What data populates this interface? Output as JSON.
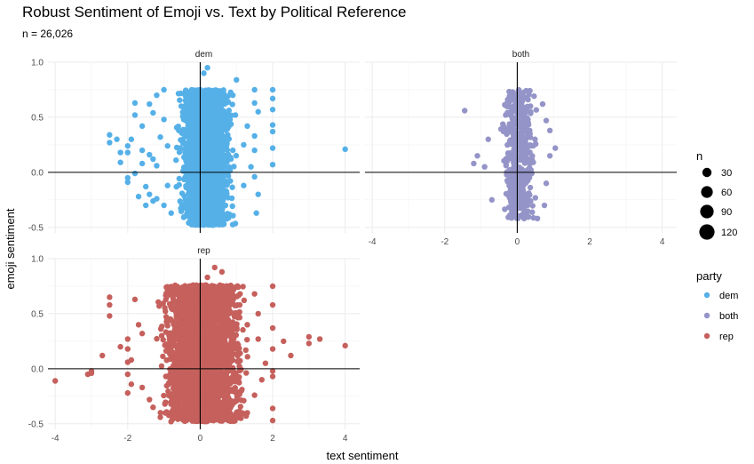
{
  "chart_data": {
    "type": "scatter",
    "title": "Robust Sentiment of Emoji vs. Text by Political Reference",
    "subtitle": "n = 26,026",
    "xlabel": "text sentiment",
    "ylabel": "emoji sentiment",
    "xlim": [
      -4.2,
      4.4
    ],
    "ylim": [
      -0.55,
      1.0
    ],
    "x_ticks": [
      -4,
      -2,
      0,
      2,
      4
    ],
    "y_ticks": [
      -0.5,
      0.0,
      0.5,
      1.0
    ],
    "x_tick_labels": [
      "-4",
      "-2",
      "0",
      "2",
      "4"
    ],
    "y_tick_labels": [
      "-0.5",
      "0.0",
      "0.5",
      "1.0"
    ],
    "grid": true,
    "reference_lines": {
      "x": 0,
      "y": 0
    },
    "facets": [
      "dem",
      "both",
      "rep"
    ],
    "legend": {
      "size": {
        "title": "n",
        "values": [
          30,
          60,
          90,
          120
        ],
        "labels": [
          "30",
          "60",
          "90",
          "120"
        ]
      },
      "color": {
        "title": "party",
        "entries": [
          {
            "key": "dem",
            "label": " dem",
            "color": "#56B0E8"
          },
          {
            "key": "both",
            "label": "both",
            "color": "#9494C8"
          },
          {
            "key": "rep",
            "label": "rep",
            "color": "#C5605C"
          }
        ]
      }
    },
    "series": [
      {
        "name": "dem",
        "color": "#56B0E8",
        "cloud": {
          "x_range": [
            -0.7,
            1.0
          ],
          "y_range": [
            -0.48,
            0.75
          ],
          "count": 2200
        },
        "points": [
          [
            4.0,
            0.21
          ],
          [
            2.0,
            0.75
          ],
          [
            2.0,
            0.67
          ],
          [
            2.0,
            0.57
          ],
          [
            2.0,
            0.43
          ],
          [
            2.0,
            0.37
          ],
          [
            2.0,
            0.22
          ],
          [
            2.0,
            0.07
          ],
          [
            1.5,
            0.75
          ],
          [
            1.5,
            0.63
          ],
          [
            1.5,
            0.33
          ],
          [
            1.5,
            0.2
          ],
          [
            1.5,
            -0.04
          ],
          [
            1.6,
            0.55
          ],
          [
            1.3,
            0.42
          ],
          [
            1.2,
            0.25
          ],
          [
            1.4,
            0.05
          ],
          [
            1.6,
            -0.2
          ],
          [
            1.55,
            -0.37
          ],
          [
            1.2,
            -0.12
          ],
          [
            1.0,
            0.84
          ],
          [
            0.9,
            0.7
          ],
          [
            0.9,
            0.2
          ],
          [
            -1.8,
            0.63
          ],
          [
            -1.8,
            0.52
          ],
          [
            -1.6,
            0.42
          ],
          [
            -1.3,
            0.54
          ],
          [
            -1.2,
            0.7
          ],
          [
            -1.0,
            0.75
          ],
          [
            -1.0,
            0.48
          ],
          [
            -2.5,
            0.34
          ],
          [
            -2.5,
            0.27
          ],
          [
            -2.3,
            0.3
          ],
          [
            -2.2,
            0.18
          ],
          [
            -2.0,
            0.18
          ],
          [
            -1.9,
            0.3
          ],
          [
            -1.6,
            0.2
          ],
          [
            -1.4,
            0.16
          ],
          [
            -1.3,
            0.12
          ],
          [
            -1.6,
            0.08
          ],
          [
            -1.2,
            0.06
          ],
          [
            -2.0,
            -0.05
          ],
          [
            -2.0,
            -0.09
          ],
          [
            -1.8,
            -0.01
          ],
          [
            -1.5,
            -0.13
          ],
          [
            -1.4,
            -0.2
          ],
          [
            -1.2,
            -0.24
          ],
          [
            -1.0,
            -0.3
          ],
          [
            -0.8,
            -0.37
          ],
          [
            -1.3,
            -0.26
          ],
          [
            -1.5,
            -0.3
          ],
          [
            -1.7,
            -0.22
          ],
          [
            -2.0,
            0.24
          ],
          [
            -1.4,
            0.62
          ],
          [
            -2.2,
            0.09
          ],
          [
            -0.9,
            0.24
          ],
          [
            0.8,
            -0.38
          ],
          [
            0.5,
            -0.46
          ],
          [
            0.2,
            0.95
          ],
          [
            0.1,
            0.9
          ],
          [
            -0.9,
            -0.12
          ],
          [
            -1.1,
            0.32
          ]
        ]
      },
      {
        "name": "both",
        "color": "#9494C8",
        "cloud": {
          "x_range": [
            -0.5,
            0.6
          ],
          "y_range": [
            -0.42,
            0.75
          ],
          "count": 500
        },
        "points": [
          [
            -1.45,
            0.56
          ],
          [
            -1.1,
            0.15
          ],
          [
            -1.2,
            0.08
          ],
          [
            -0.9,
            0.05
          ],
          [
            -0.7,
            -0.25
          ],
          [
            1.05,
            0.22
          ],
          [
            0.9,
            0.38
          ],
          [
            0.8,
            0.47
          ],
          [
            0.9,
            0.15
          ],
          [
            0.8,
            -0.1
          ],
          [
            0.7,
            0.62
          ],
          [
            -0.8,
            0.3
          ],
          [
            0.75,
            -0.3
          ]
        ]
      },
      {
        "name": "rep",
        "color": "#C5605C",
        "cloud": {
          "x_range": [
            -1.2,
            1.35
          ],
          "y_range": [
            -0.48,
            0.76
          ],
          "count": 3200
        },
        "points": [
          [
            -4.0,
            -0.11
          ],
          [
            -3.0,
            -0.04
          ],
          [
            -3.0,
            -0.02
          ],
          [
            -2.7,
            0.12
          ],
          [
            -3.1,
            -0.05
          ],
          [
            -2.5,
            0.58
          ],
          [
            -2.5,
            0.48
          ],
          [
            -2.2,
            0.2
          ],
          [
            -2.0,
            0.27
          ],
          [
            -2.0,
            0.18
          ],
          [
            -2.0,
            0.06
          ],
          [
            -2.0,
            -0.05
          ],
          [
            -1.9,
            -0.14
          ],
          [
            -2.0,
            -0.22
          ],
          [
            -1.8,
            0.63
          ],
          [
            -1.7,
            0.4
          ],
          [
            -1.6,
            0.32
          ],
          [
            -1.9,
            0.08
          ],
          [
            -1.6,
            -0.17
          ],
          [
            -1.4,
            -0.28
          ],
          [
            -1.3,
            -0.35
          ],
          [
            3.0,
            0.29
          ],
          [
            3.0,
            0.23
          ],
          [
            3.3,
            0.27
          ],
          [
            4.0,
            0.21
          ],
          [
            2.0,
            0.75
          ],
          [
            2.0,
            0.58
          ],
          [
            2.0,
            0.37
          ],
          [
            2.0,
            0.18
          ],
          [
            2.0,
            -0.02
          ],
          [
            2.0,
            -0.07
          ],
          [
            2.0,
            -0.36
          ],
          [
            2.0,
            -0.47
          ],
          [
            1.8,
            0.05
          ],
          [
            1.6,
            0.5
          ],
          [
            1.5,
            0.68
          ],
          [
            1.6,
            0.27
          ],
          [
            1.7,
            -0.1
          ],
          [
            1.5,
            -0.24
          ],
          [
            1.3,
            -0.4
          ],
          [
            1.3,
            0.4
          ],
          [
            1.0,
            -0.43
          ],
          [
            0.6,
            0.88
          ],
          [
            0.4,
            0.92
          ],
          [
            0.2,
            0.83
          ],
          [
            -0.8,
            -0.4
          ],
          [
            -1.1,
            -0.44
          ],
          [
            2.3,
            0.25
          ],
          [
            2.5,
            0.12
          ],
          [
            -2.5,
            0.65
          ]
        ]
      }
    ]
  }
}
